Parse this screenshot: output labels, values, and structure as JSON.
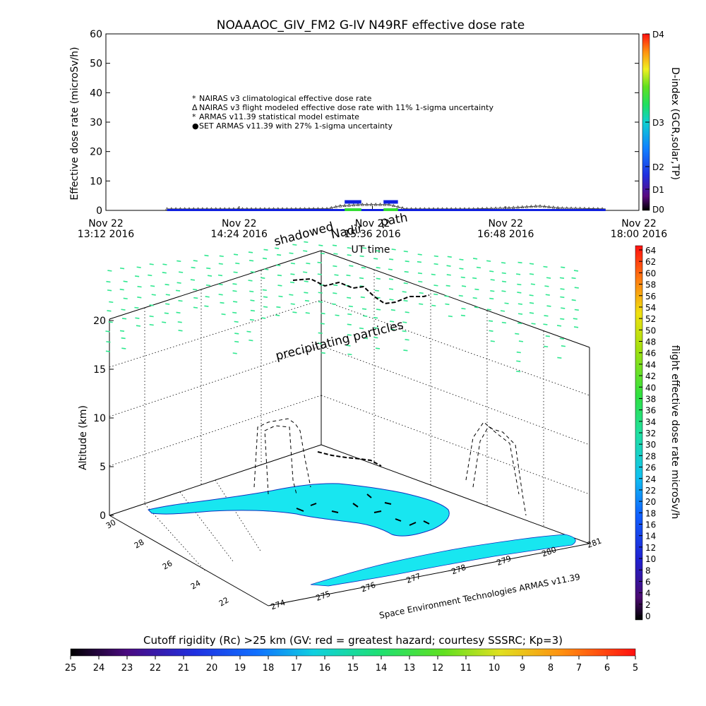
{
  "header": {
    "title": "NOAAAOC_GIV_FM2 G-IV    N49RF  effective dose rate"
  },
  "colors": {
    "nairas_clim": "#e07070",
    "nairas_flight": "#555555",
    "armas_stat": "#33dd33",
    "set_armas": "#1020e0",
    "cyan_land": "#18e6f0",
    "particles": "#30e890"
  },
  "top_chart": {
    "ylabel": "Effective dose rate (microSv/h)",
    "xlabel": "UT time",
    "ylim": [
      0,
      60
    ],
    "yticks": [
      "0",
      "10",
      "20",
      "30",
      "40",
      "50",
      "60"
    ],
    "xticks": [
      {
        "l1": "Nov 22",
        "l2": "13:12 2016"
      },
      {
        "l1": "Nov 22",
        "l2": "14:24 2016"
      },
      {
        "l1": "Nov 22",
        "l2": "15:36 2016"
      },
      {
        "l1": "Nov 22",
        "l2": "16:48 2016"
      },
      {
        "l1": "Nov 22",
        "l2": "18:00 2016"
      }
    ],
    "legend": [
      {
        "symbol": "*",
        "color": "#e07070",
        "text": "NAIRAS v3 climatological effective dose rate"
      },
      {
        "symbol": "Δ",
        "color": "#333333",
        "text": "NAIRAS v3 flight modeled effective dose rate with 11% 1-sigma uncertainty"
      },
      {
        "symbol": "*",
        "color": "#22cc22",
        "text": "ARMAS v11.39 statistical model estimate"
      },
      {
        "symbol": "●",
        "color": "#1020e0",
        "text": "SET ARMAS v11.39 with 27% 1-sigma uncertainty"
      }
    ],
    "dindex": {
      "label": "D-index (GCR,solar,TP)",
      "ticks": [
        "D4",
        "D3",
        "D2",
        "D1",
        "D0"
      ]
    }
  },
  "chart_data": [
    {
      "type": "line",
      "title": "NOAAAOC_GIV_FM2 G-IV    N49RF  effective dose rate",
      "xlabel": "UT time",
      "ylabel": "Effective dose rate (microSv/h)",
      "ylim": [
        0,
        60
      ],
      "xlim_hours": [
        13.2,
        18.0
      ],
      "series": [
        {
          "name": "NAIRAS v3 flight modeled effective dose rate with 11% 1-sigma uncertainty",
          "x": [
            13.75,
            14.8,
            15.2,
            15.3,
            15.5,
            15.75,
            15.9,
            16.5,
            16.8,
            17.1,
            17.3,
            17.7
          ],
          "y": [
            0.5,
            0.5,
            0.6,
            1.5,
            2.0,
            2.0,
            0.5,
            0.5,
            0.8,
            1.5,
            0.8,
            0.5
          ]
        },
        {
          "name": "SET ARMAS v11.39 with 27% 1-sigma uncertainty",
          "x": [
            13.75,
            15.35,
            15.48,
            15.55,
            15.7,
            17.7
          ],
          "y": [
            0.0,
            3.0,
            3.0,
            0.0,
            3.0,
            0.0
          ]
        },
        {
          "name": "ARMAS v11.39 statistical model estimate",
          "x": [
            15.35,
            15.48,
            15.55,
            15.7
          ],
          "y": [
            0.5,
            0.5,
            0.5,
            0.5
          ]
        }
      ]
    },
    {
      "type": "scatter",
      "title": "",
      "ylabel": "Altitude (km)",
      "zlim": [
        0,
        20
      ],
      "note": "3D flight-path view over Florida with precipitating particle field"
    }
  ],
  "scene": {
    "annotations": {
      "shadowed": "shadowed",
      "nadir": "Nadir",
      "path": "path",
      "precipitating": "precipitating particles",
      "credit": "Space Environment Technologies ARMAS v11.39"
    },
    "altitude_label": "Altitude (km)",
    "altitude_ticks": [
      "0",
      "5",
      "10",
      "15",
      "20"
    ],
    "lat_ticks": [
      "30",
      "28",
      "26",
      "24",
      "22"
    ],
    "lon_ticks": [
      "274",
      "275",
      "276",
      "277",
      "278",
      "279",
      "280",
      "281"
    ]
  },
  "right_scale": {
    "label": "flight effective dose rate microSv/h",
    "ticks": [
      "64",
      "62",
      "60",
      "58",
      "56",
      "54",
      "52",
      "50",
      "48",
      "46",
      "44",
      "42",
      "40",
      "38",
      "36",
      "34",
      "32",
      "30",
      "28",
      "26",
      "24",
      "22",
      "20",
      "18",
      "16",
      "14",
      "12",
      "10",
      "8",
      "6",
      "4",
      "2",
      "0"
    ]
  },
  "bottom_scale": {
    "title": "Cutoff rigidity (Rc) >25 km (GV: red = greatest hazard; courtesy SSSRC; Kp=3)",
    "ticks": [
      "25",
      "24",
      "23",
      "22",
      "21",
      "20",
      "19",
      "18",
      "17",
      "16",
      "15",
      "14",
      "13",
      "12",
      "11",
      "10",
      "9",
      "8",
      "7",
      "6",
      "5"
    ]
  }
}
